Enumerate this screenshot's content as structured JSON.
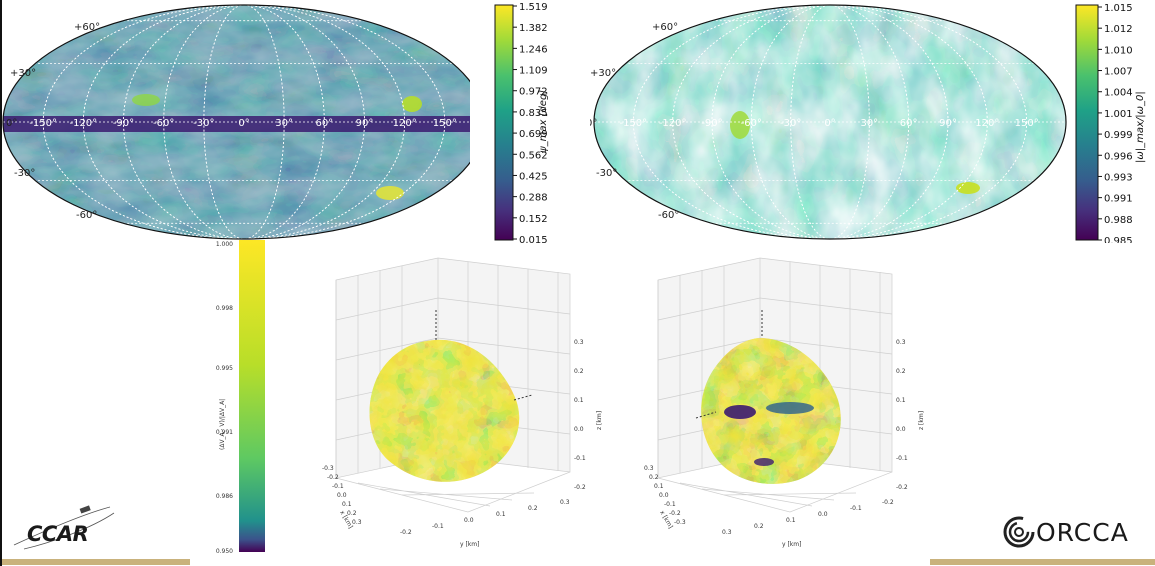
{
  "maps": [
    {
      "id": "psi",
      "type": "heatmap",
      "projection": "mollweide",
      "lat_labels": [
        "+60°",
        "+30°",
        "0°",
        "-30°",
        "-60°"
      ],
      "lon_labels": [
        "-150°",
        "-120°",
        "-90°",
        "-60°",
        "-30°",
        "0°",
        "30°",
        "60°",
        "90°",
        "120°",
        "150°"
      ],
      "colorbar_ticks": [
        "1.519",
        "1.382",
        "1.246",
        "1.109",
        "0.972",
        "0.835",
        "0.699",
        "0.562",
        "0.425",
        "0.288",
        "0.152",
        "0.015"
      ],
      "colorbar_label": "ψ_max [deg]",
      "colorbar_range": [
        0.015,
        1.519
      ]
    },
    {
      "id": "omega",
      "type": "heatmap",
      "projection": "mollweide",
      "lat_labels": [
        "+60°",
        "+30°",
        "0°",
        "-30°",
        "-60°"
      ],
      "lon_labels": [
        "-150°",
        "-120°",
        "-90°",
        "-60°",
        "-30°",
        "0°",
        "30°",
        "60°",
        "90°",
        "120°",
        "150°"
      ],
      "colorbar_ticks": [
        "1.015",
        "1.012",
        "1.010",
        "1.007",
        "1.004",
        "1.001",
        "0.999",
        "0.996",
        "0.993",
        "0.991",
        "0.988",
        "0.985"
      ],
      "colorbar_label": "|ω|_max/|ω_0|",
      "colorbar_range": [
        0.985,
        1.015
      ]
    }
  ],
  "chart_data": {
    "type": "heatmap",
    "colorbar_3d": {
      "ticks": [
        "1.000",
        "0.998",
        "0.995",
        "0.991",
        "0.986",
        "0.950"
      ],
      "label": "(ΔV_A · V)/|ΔV_A|",
      "range": [
        0.95,
        1.0
      ]
    },
    "surface_plots": [
      {
        "z_ticks": [
          "0.3",
          "0.2",
          "0.1",
          "0.0",
          "-0.1",
          "-0.2"
        ],
        "z_label": "z [km]",
        "x_ticks": [
          "-0.3",
          "-0.2",
          "-0.1",
          "0.0",
          "0.1",
          "0.2",
          "0.3"
        ],
        "x_label": "x [km]",
        "y_ticks": [
          "-0.2",
          "-0.1",
          "0.0",
          "0.1",
          "0.2",
          "0.3"
        ],
        "y_label": "y [km]"
      },
      {
        "z_ticks": [
          "0.3",
          "0.2",
          "0.1",
          "0.0",
          "-0.1",
          "-0.2"
        ],
        "z_label": "z [km]",
        "x_ticks": [
          "0.3",
          "0.2",
          "0.1",
          "0.0",
          "-0.1",
          "-0.2",
          "-0.3"
        ],
        "x_label": "x [km]",
        "y_ticks": [
          "0.3",
          "0.2",
          "0.1",
          "0.0",
          "-0.1",
          "-0.2"
        ],
        "y_label": "y [km]"
      }
    ]
  },
  "logos": {
    "left": "CCAR",
    "right": "ORCCA"
  },
  "colors": {
    "viridis_low": "#440154",
    "viridis_mid": "#21918c",
    "viridis_high": "#fde725",
    "gold_bar": "#c9b27c"
  }
}
